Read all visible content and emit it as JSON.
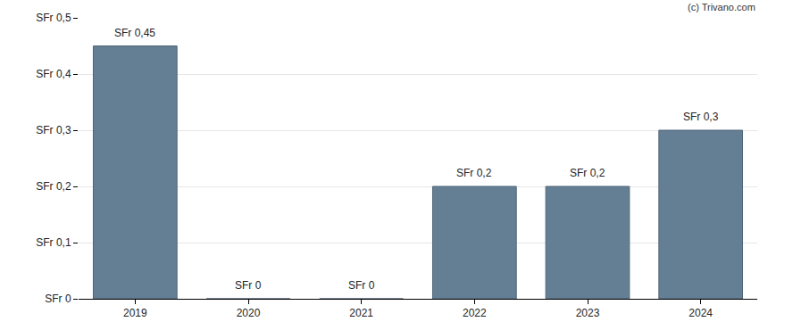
{
  "chart_data": {
    "type": "bar",
    "categories": [
      "2019",
      "2020",
      "2021",
      "2022",
      "2023",
      "2024"
    ],
    "values": [
      0.45,
      0,
      0,
      0.2,
      0.2,
      0.3
    ],
    "value_labels": [
      "SFr 0,45",
      "SFr 0",
      "SFr 0",
      "SFr 0,2",
      "SFr 0,2",
      "SFr 0,3"
    ],
    "data_labels": true,
    "color": "#647f94",
    "ylim": [
      0,
      0.5
    ],
    "yticks": [
      {
        "value": 0,
        "label": "SFr 0"
      },
      {
        "value": 0.1,
        "label": "SFr 0,1"
      },
      {
        "value": 0.2,
        "label": "SFr 0,2"
      },
      {
        "value": 0.3,
        "label": "SFr 0,3"
      },
      {
        "value": 0.4,
        "label": "SFr 0,4"
      },
      {
        "value": 0.5,
        "label": "SFr 0,5"
      }
    ],
    "grid": true,
    "annotations": [
      "(c) Trivano.com"
    ]
  }
}
